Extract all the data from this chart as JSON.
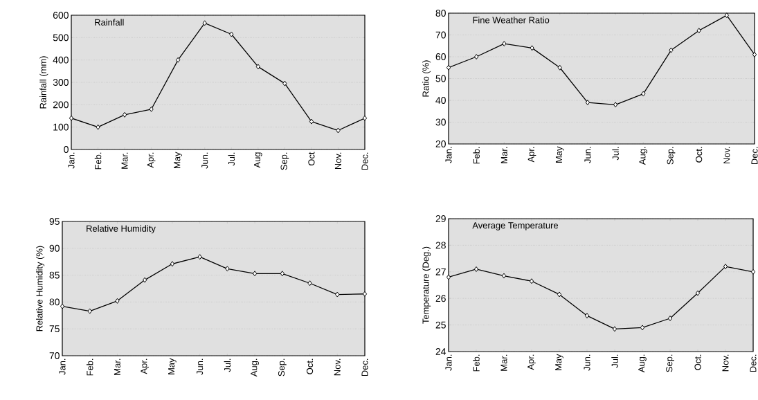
{
  "chart_data": [
    {
      "type": "line",
      "title": "Rainfall",
      "ylabel": "Rainfall (mm)",
      "categories": [
        "Jan.",
        "Feb.",
        "Mar.",
        "Apr.",
        "May",
        "Jun.",
        "Jul.",
        "Aug",
        "Sep.",
        "Oct",
        "Nov.",
        "Dec."
      ],
      "series": [
        {
          "color": "#000000",
          "values": [
            140,
            100,
            155,
            180,
            400,
            565,
            515,
            370,
            295,
            125,
            85,
            140
          ]
        }
      ],
      "ylim": [
        0,
        600
      ],
      "yticks": [
        0,
        100,
        200,
        300,
        400,
        500,
        600
      ],
      "grid": "y",
      "marker": "diamond",
      "line_style": "solid"
    },
    {
      "type": "line",
      "title": "Fine Weather Ratio",
      "ylabel": "Ratio (%)",
      "categories": [
        "Jan.",
        "Feb.",
        "Mar.",
        "Apr.",
        "May",
        "Jun.",
        "Jul.",
        "Aug.",
        "Sep.",
        "Oct.",
        "Nov.",
        "Dec."
      ],
      "series": [
        {
          "color": "#000000",
          "values": [
            55,
            60,
            66,
            64,
            55,
            39,
            38,
            43,
            63,
            72,
            79,
            61
          ]
        }
      ],
      "ylim": [
        20,
        80
      ],
      "yticks": [
        20,
        30,
        40,
        50,
        60,
        70,
        80
      ],
      "grid": "y",
      "marker": "diamond",
      "line_style": "solid"
    },
    {
      "type": "line",
      "title": "Relative Humidity",
      "ylabel": "Relative Humidity (%)",
      "categories": [
        "Jan.",
        "Feb.",
        "Mar.",
        "Apr.",
        "May",
        "Jun.",
        "Jul.",
        "Aug.",
        "Sep.",
        "Oct.",
        "Nov.",
        "Dec."
      ],
      "series": [
        {
          "color": "#000000",
          "values": [
            79.2,
            78.3,
            80.2,
            84.1,
            87.1,
            88.4,
            86.2,
            85.3,
            85.3,
            83.5,
            81.4,
            81.5
          ]
        }
      ],
      "ylim": [
        70,
        95
      ],
      "yticks": [
        70,
        75,
        80,
        85,
        90,
        95
      ],
      "grid": "y",
      "marker": "diamond",
      "line_style": "solid"
    },
    {
      "type": "line",
      "title": "Average Temperature",
      "ylabel": "Temperature (Deg.)",
      "categories": [
        "Jan.",
        "Feb.",
        "Mar.",
        "Apr.",
        "May",
        "Jun.",
        "Jul.",
        "Aug.",
        "Sep.",
        "Oct.",
        "Nov.",
        "Dec."
      ],
      "series": [
        {
          "color": "#000000",
          "values": [
            26.8,
            27.1,
            26.85,
            26.65,
            26.15,
            25.35,
            24.85,
            24.9,
            25.25,
            26.2,
            27.2,
            27.0
          ]
        }
      ],
      "ylim": [
        24,
        29
      ],
      "yticks": [
        24,
        25,
        26,
        27,
        28,
        29
      ],
      "grid": "y",
      "marker": "diamond",
      "line_style": "solid"
    }
  ]
}
